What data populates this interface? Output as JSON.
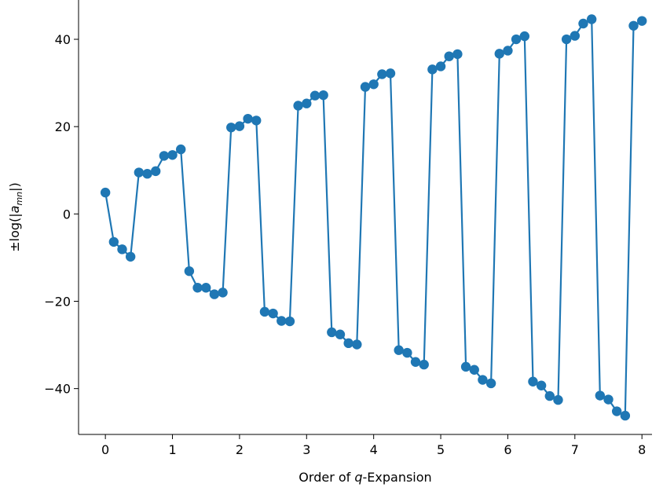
{
  "chart_data": {
    "type": "line",
    "title": "",
    "xlabel": "Order of q-Expansion",
    "ylabel": "±log(|a_mn|)",
    "xlim": [
      -0.4,
      8.15
    ],
    "ylim": [
      -50.5,
      49
    ],
    "xticks": [
      0,
      1,
      2,
      3,
      4,
      5,
      6,
      7,
      8
    ],
    "yticks": [
      -40,
      -20,
      0,
      20,
      40
    ],
    "xtick_labels": [
      "0",
      "1",
      "2",
      "3",
      "4",
      "5",
      "6",
      "7",
      "8"
    ],
    "ytick_labels": [
      "−40",
      "−20",
      "0",
      "20",
      "40"
    ],
    "grid": false,
    "markers": true,
    "color": "#1f77b4",
    "series": [
      {
        "x": [
          0,
          0.125,
          0.25,
          0.375,
          0.5,
          0.625,
          0.75,
          0.875,
          1,
          1.125,
          1.25,
          1.375,
          1.5,
          1.625,
          1.75,
          1.875,
          2,
          2.125,
          2.25,
          2.375,
          2.5,
          2.625,
          2.75,
          2.875,
          3,
          3.125,
          3.25,
          3.375,
          3.5,
          3.625,
          3.75,
          3.875,
          4,
          4.125,
          4.25,
          4.375,
          4.5,
          4.625,
          4.75,
          4.875,
          5,
          5.125,
          5.25,
          5.375,
          5.5,
          5.625,
          5.75,
          5.875,
          6,
          6.125,
          6.25,
          6.375,
          6.5,
          6.625,
          6.75,
          6.875,
          7,
          7.125,
          7.25,
          7.375,
          7.5,
          7.625,
          7.75,
          7.875,
          8
        ],
        "y": [
          4.9,
          -6.4,
          -8.1,
          -9.8,
          9.5,
          9.2,
          9.8,
          13.3,
          13.5,
          14.8,
          -13.1,
          -16.9,
          -16.9,
          -18.4,
          -18.0,
          19.8,
          20.1,
          21.8,
          21.4,
          -22.4,
          -22.8,
          -24.5,
          -24.6,
          24.8,
          25.3,
          27.1,
          27.2,
          -27.1,
          -27.6,
          -29.6,
          -29.9,
          29.1,
          29.7,
          32.0,
          32.2,
          -31.2,
          -31.8,
          -33.9,
          -34.5,
          33.1,
          33.8,
          36.1,
          36.6,
          -35.0,
          -35.7,
          -38.0,
          -38.8,
          36.7,
          37.4,
          40.0,
          40.7,
          -38.4,
          -39.3,
          -41.7,
          -42.6,
          40.0,
          40.8,
          43.6,
          44.6,
          -41.6,
          -42.5,
          -45.2,
          -46.2,
          43.1,
          44.2
        ]
      }
    ]
  }
}
